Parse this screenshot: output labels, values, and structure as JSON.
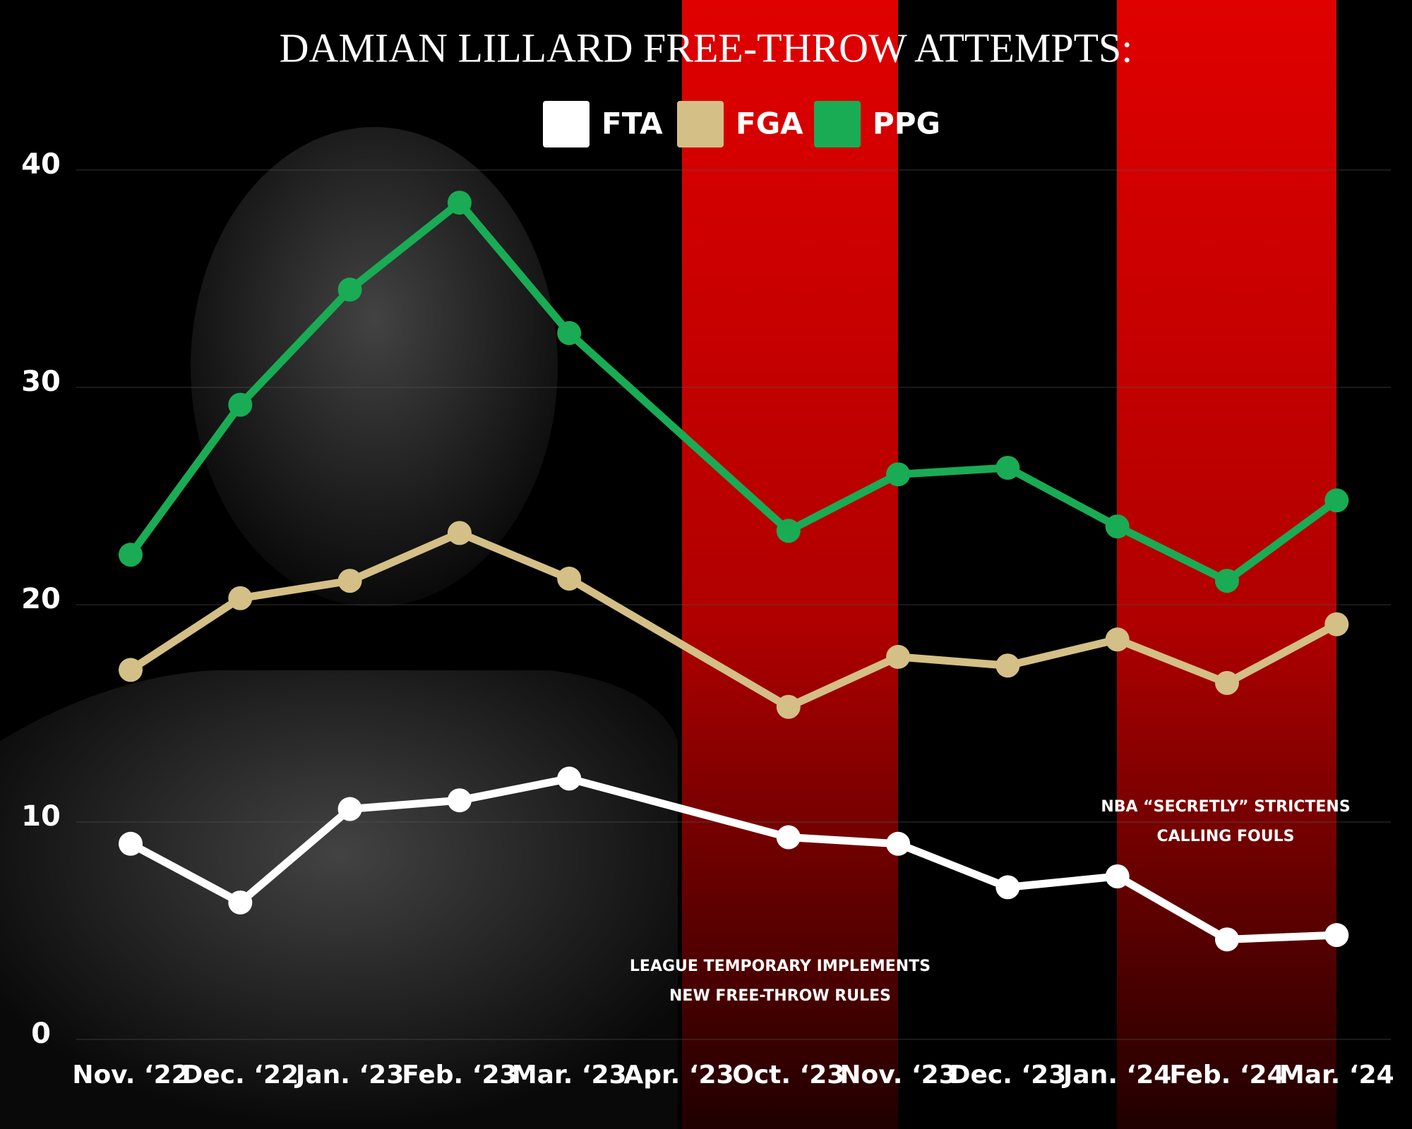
{
  "chart_data": {
    "type": "line",
    "title": "DAMIAN LILLARD FREE-THROW ATTEMPTS:",
    "categories": [
      "Nov. ‘22",
      "Dec. ‘22",
      "Jan. ‘23",
      "Feb. ‘23",
      "Mar. ‘23",
      "Apr. ‘23",
      "Oct. ‘23",
      "Nov. ‘23",
      "Dec. ‘23",
      "Jan. ‘24",
      "Feb. ‘24",
      "Mar. ‘24"
    ],
    "series": [
      {
        "name": "FTA",
        "color": "#ffffff",
        "values": [
          9.0,
          6.3,
          10.6,
          11.0,
          12.0,
          null,
          9.3,
          9.0,
          7.0,
          7.5,
          4.6,
          4.8
        ]
      },
      {
        "name": "FGA",
        "color": "#d4bf86",
        "values": [
          17.0,
          20.3,
          21.1,
          23.3,
          21.2,
          null,
          15.3,
          17.6,
          17.2,
          18.4,
          16.4,
          19.1
        ]
      },
      {
        "name": "PPG",
        "color": "#1aab55",
        "values": [
          22.3,
          29.2,
          34.5,
          38.5,
          32.5,
          null,
          23.4,
          26.0,
          26.3,
          23.6,
          21.1,
          24.8
        ]
      }
    ],
    "connect_gaps": true,
    "ylim": [
      0,
      40
    ],
    "yticks": [
      0,
      10,
      20,
      30,
      40
    ],
    "grid": true,
    "annotations": [
      [
        "LEAGUE TEMPORARY IMPLEMENTS",
        "NEW FREE-THROW RULES"
      ],
      [
        "NBA “SECRETLY” STRICTENS",
        "CALLING FOULS"
      ]
    ]
  }
}
